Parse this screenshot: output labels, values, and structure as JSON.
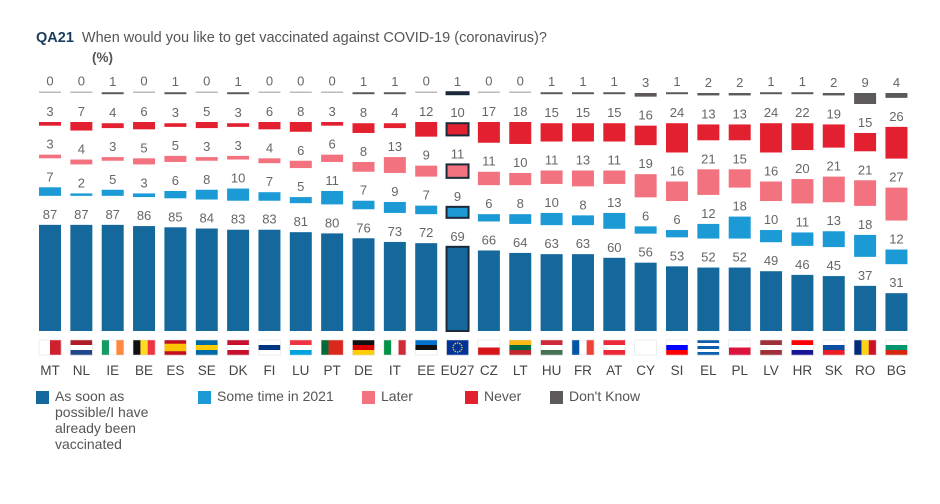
{
  "chart_data": {
    "type": "bar",
    "stacked": true,
    "title_code": "QA21",
    "title": "When would you like to get vaccinated against COVID-19 (coronavirus)?",
    "unit": "(%)",
    "categories": [
      "MT",
      "NL",
      "IE",
      "BE",
      "ES",
      "SE",
      "DK",
      "FI",
      "LU",
      "PT",
      "DE",
      "IT",
      "EE",
      "EU27",
      "CZ",
      "LT",
      "HU",
      "FR",
      "AT",
      "CY",
      "SI",
      "EL",
      "PL",
      "LV",
      "HR",
      "SK",
      "RO",
      "BG"
    ],
    "highlight": "EU27",
    "series": [
      {
        "name": "As soon as possible/I have already been vaccinated",
        "color": "#15689c",
        "values": [
          87,
          87,
          87,
          86,
          85,
          84,
          83,
          83,
          81,
          80,
          76,
          73,
          72,
          69,
          66,
          64,
          63,
          63,
          60,
          56,
          53,
          52,
          52,
          49,
          46,
          45,
          37,
          31
        ]
      },
      {
        "name": "Some time in 2021",
        "color": "#1c9ad6",
        "values": [
          7,
          2,
          5,
          3,
          6,
          8,
          10,
          7,
          5,
          11,
          7,
          9,
          7,
          9,
          6,
          8,
          10,
          8,
          13,
          6,
          6,
          12,
          18,
          10,
          11,
          13,
          18,
          12
        ]
      },
      {
        "name": "Later",
        "color": "#f2737f",
        "values": [
          3,
          4,
          3,
          5,
          5,
          3,
          3,
          4,
          6,
          6,
          8,
          13,
          9,
          11,
          11,
          10,
          11,
          13,
          11,
          19,
          16,
          21,
          15,
          16,
          20,
          21,
          21,
          27
        ]
      },
      {
        "name": "Never",
        "color": "#e3202f",
        "values": [
          3,
          7,
          4,
          6,
          3,
          5,
          3,
          6,
          8,
          3,
          8,
          4,
          12,
          10,
          17,
          18,
          15,
          15,
          15,
          16,
          24,
          13,
          13,
          24,
          22,
          19,
          15,
          26
        ]
      },
      {
        "name": "Don't Know",
        "color": "#5e5a5c",
        "values": [
          0,
          0,
          1,
          0,
          1,
          0,
          1,
          0,
          0,
          0,
          1,
          1,
          0,
          1,
          0,
          0,
          1,
          1,
          1,
          3,
          1,
          2,
          2,
          1,
          1,
          2,
          9,
          4
        ]
      }
    ],
    "legend_position": "bottom",
    "grid": false,
    "flags": [
      {
        "o": "v",
        "c": [
          "#fff",
          "#d0202f"
        ]
      },
      {
        "o": "h",
        "c": [
          "#ae1c28",
          "#fff",
          "#21468b"
        ]
      },
      {
        "o": "v",
        "c": [
          "#169b62",
          "#fff",
          "#ff883e"
        ]
      },
      {
        "o": "v",
        "c": [
          "#111",
          "#fdda24",
          "#ef3340"
        ]
      },
      {
        "o": "h",
        "c": [
          "#c60b1e",
          "#ffc400",
          "#ffc400",
          "#c60b1e"
        ]
      },
      {
        "o": "h",
        "c": [
          "#006aa7",
          "#fecc00",
          "#006aa7"
        ]
      },
      {
        "o": "h",
        "c": [
          "#c8102e",
          "#fff",
          "#c8102e"
        ]
      },
      {
        "o": "h",
        "c": [
          "#fff",
          "#003580",
          "#fff"
        ]
      },
      {
        "o": "h",
        "c": [
          "#ef3340",
          "#fff",
          "#00a3e0"
        ]
      },
      {
        "o": "v",
        "c": [
          "#046a38",
          "#da291c",
          "#da291c"
        ]
      },
      {
        "o": "h",
        "c": [
          "#111",
          "#dd0000",
          "#ffce00"
        ]
      },
      {
        "o": "v",
        "c": [
          "#009246",
          "#fff",
          "#ce2b37"
        ]
      },
      {
        "o": "h",
        "c": [
          "#0072ce",
          "#111",
          "#fff"
        ]
      },
      {
        "o": "h",
        "c": [
          "#003399"
        ]
      },
      {
        "o": "h",
        "c": [
          "#fff",
          "#d7141a"
        ]
      },
      {
        "o": "h",
        "c": [
          "#fdb913",
          "#006a44",
          "#c1272d"
        ]
      },
      {
        "o": "h",
        "c": [
          "#ce2939",
          "#fff",
          "#477050"
        ]
      },
      {
        "o": "v",
        "c": [
          "#0055a4",
          "#fff",
          "#ef4135"
        ]
      },
      {
        "o": "h",
        "c": [
          "#ed2939",
          "#fff",
          "#ed2939"
        ]
      },
      {
        "o": "h",
        "c": [
          "#fff"
        ]
      },
      {
        "o": "h",
        "c": [
          "#fff",
          "#0000ff",
          "#ff0000"
        ]
      },
      {
        "o": "h",
        "c": [
          "#0d5eaf",
          "#fff",
          "#0d5eaf",
          "#fff",
          "#0d5eaf"
        ]
      },
      {
        "o": "h",
        "c": [
          "#fff",
          "#dc143c"
        ]
      },
      {
        "o": "h",
        "c": [
          "#9e3039",
          "#fff",
          "#9e3039"
        ]
      },
      {
        "o": "h",
        "c": [
          "#ff0000",
          "#fff",
          "#171796"
        ]
      },
      {
        "o": "h",
        "c": [
          "#fff",
          "#0b4ea2",
          "#ee1c25"
        ]
      },
      {
        "o": "v",
        "c": [
          "#002b7f",
          "#fcd116",
          "#ce1126"
        ]
      },
      {
        "o": "h",
        "c": [
          "#fff",
          "#00966e",
          "#d62612"
        ]
      }
    ]
  }
}
